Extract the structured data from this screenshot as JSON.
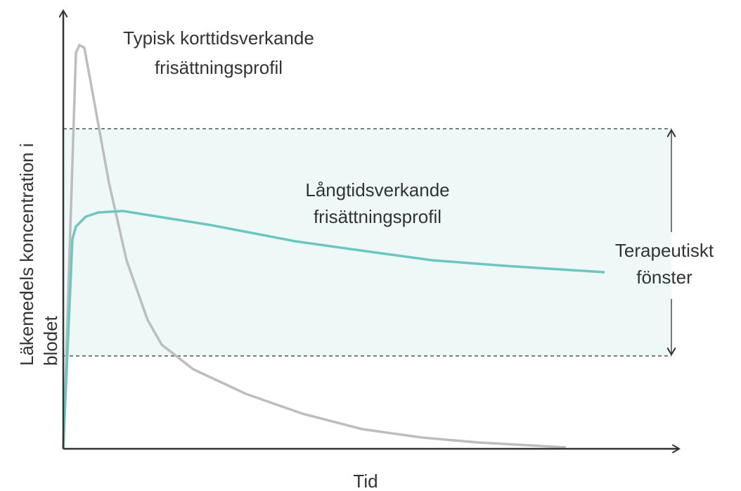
{
  "y_axis_label": [
    "Läkemedels koncentration i",
    "blodet"
  ],
  "x_axis_label": "Tid",
  "short_acting_label": [
    "Typisk korttidsverkande",
    "frisättningsprofil"
  ],
  "long_acting_label": [
    "Långtidsverkande",
    "frisättningsprofil"
  ],
  "window_label": [
    "Terapeutiskt",
    "fönster"
  ]
}
